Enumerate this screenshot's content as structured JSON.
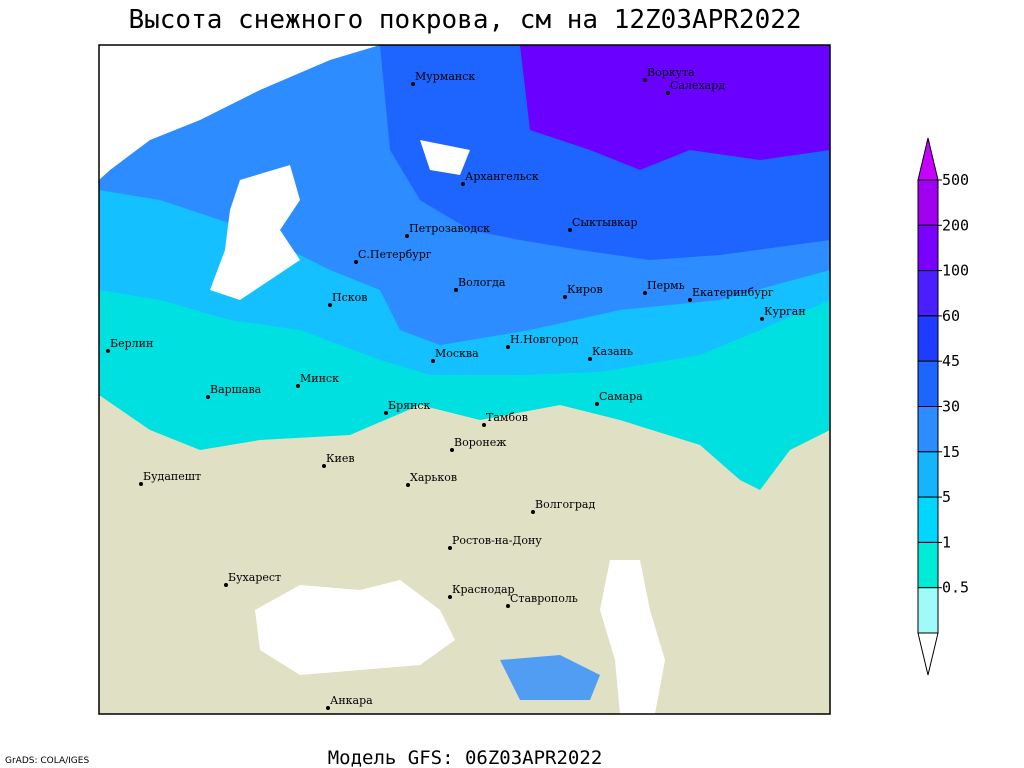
{
  "header": {
    "title": "Высота снежного покрова, см на 12Z03APR2022"
  },
  "cities": [
    "Мурманск",
    "Воркута",
    "Салехард",
    "Архангельск",
    "Петрозаводск",
    "Сыктывкар",
    "С.Петербург",
    "Вологда",
    "Киров",
    "Пермь",
    "Екатеринбург",
    "Курган",
    "Псков",
    "Берлин",
    "Н.Новгород",
    "Москва",
    "Казань",
    "Варшава",
    "Минск",
    "Брянск",
    "Тамбов",
    "Самара",
    "Киев",
    "Воронеж",
    "Будапешт",
    "Харьков",
    "Волгоград",
    "Ростов-на-Дону",
    "Бухарест",
    "Краснодар",
    "Ставрополь",
    "Анкара"
  ],
  "legend": {
    "labels": [
      500,
      200,
      100,
      60,
      45,
      30,
      15,
      5,
      1,
      0.5
    ],
    "colors": [
      "#a000f0",
      "#7a00ff",
      "#4b1eff",
      "#1e3cff",
      "#1e64ff",
      "#2d8cff",
      "#14b4ff",
      "#00d7ff",
      "#00ebd7",
      "#a0fafa"
    ]
  },
  "footer": {
    "model": "Модель GFS: 06Z03APR2022",
    "credit": "GrADS: COLA/IGES"
  }
}
